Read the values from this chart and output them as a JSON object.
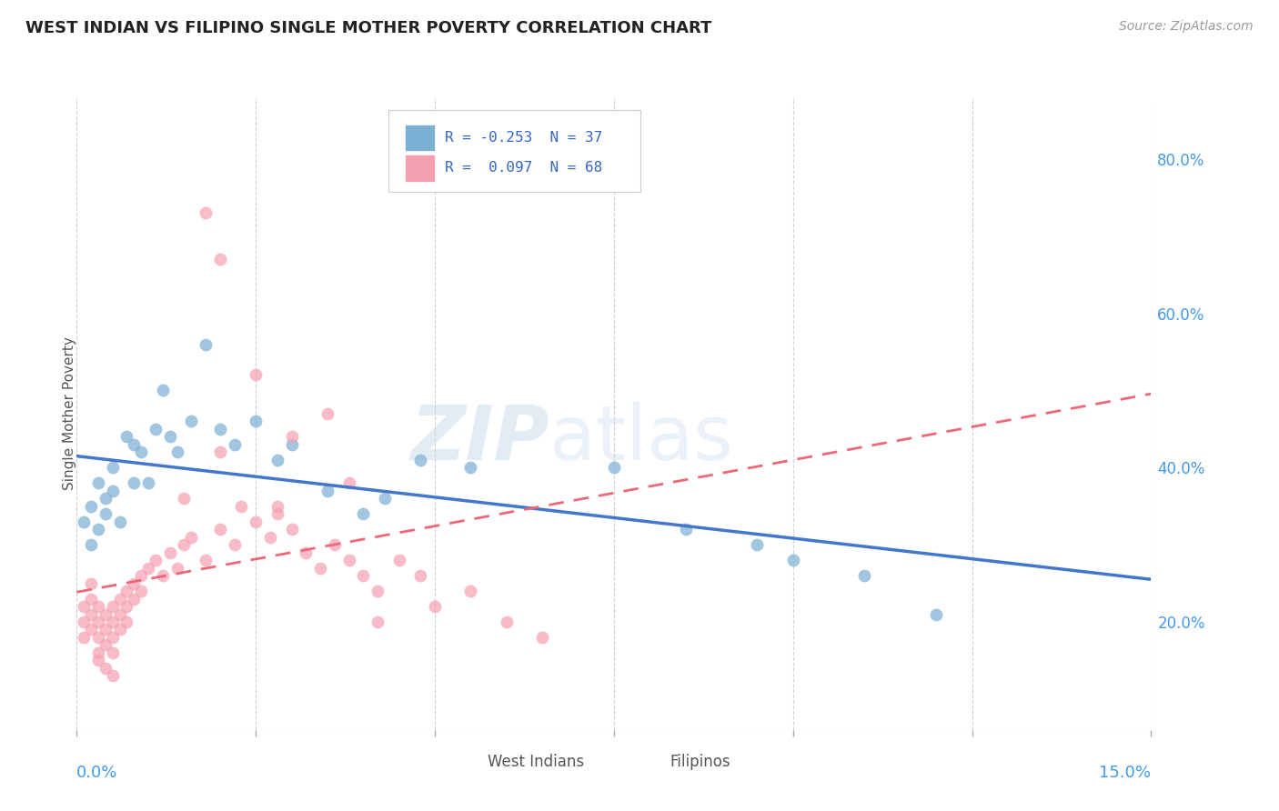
{
  "title": "WEST INDIAN VS FILIPINO SINGLE MOTHER POVERTY CORRELATION CHART",
  "source": "Source: ZipAtlas.com",
  "ylabel": "Single Mother Poverty",
  "y_ticks": [
    0.2,
    0.4,
    0.6,
    0.8
  ],
  "y_tick_labels": [
    "20.0%",
    "40.0%",
    "60.0%",
    "80.0%"
  ],
  "xlim": [
    0.0,
    0.15
  ],
  "ylim": [
    0.06,
    0.88
  ],
  "legend_blue_r": "-0.253",
  "legend_blue_n": "37",
  "legend_pink_r": "0.097",
  "legend_pink_n": "68",
  "blue_color": "#7BAFD4",
  "pink_color": "#F4A0B0",
  "line_blue_color": "#4477CC",
  "line_pink_color": "#EE6677",
  "west_indian_x": [
    0.001,
    0.002,
    0.002,
    0.003,
    0.003,
    0.004,
    0.004,
    0.005,
    0.005,
    0.006,
    0.007,
    0.008,
    0.008,
    0.009,
    0.01,
    0.011,
    0.012,
    0.013,
    0.014,
    0.016,
    0.018,
    0.02,
    0.022,
    0.025,
    0.028,
    0.03,
    0.035,
    0.04,
    0.043,
    0.048,
    0.055,
    0.075,
    0.085,
    0.095,
    0.1,
    0.11,
    0.12
  ],
  "west_indian_y": [
    0.33,
    0.35,
    0.3,
    0.32,
    0.38,
    0.34,
    0.36,
    0.4,
    0.37,
    0.33,
    0.44,
    0.38,
    0.43,
    0.42,
    0.38,
    0.45,
    0.5,
    0.44,
    0.42,
    0.46,
    0.56,
    0.45,
    0.43,
    0.46,
    0.41,
    0.43,
    0.37,
    0.34,
    0.36,
    0.41,
    0.4,
    0.4,
    0.32,
    0.3,
    0.28,
    0.26,
    0.21
  ],
  "filipino_x": [
    0.001,
    0.001,
    0.001,
    0.002,
    0.002,
    0.002,
    0.002,
    0.003,
    0.003,
    0.003,
    0.003,
    0.003,
    0.004,
    0.004,
    0.004,
    0.004,
    0.005,
    0.005,
    0.005,
    0.005,
    0.005,
    0.006,
    0.006,
    0.006,
    0.007,
    0.007,
    0.007,
    0.008,
    0.008,
    0.009,
    0.009,
    0.01,
    0.011,
    0.012,
    0.013,
    0.014,
    0.015,
    0.016,
    0.018,
    0.02,
    0.022,
    0.023,
    0.025,
    0.027,
    0.028,
    0.03,
    0.032,
    0.034,
    0.036,
    0.038,
    0.04,
    0.042,
    0.045,
    0.048,
    0.05,
    0.055,
    0.06,
    0.065,
    0.035,
    0.028,
    0.018,
    0.02,
    0.025,
    0.03,
    0.038,
    0.042,
    0.02,
    0.015
  ],
  "filipino_y": [
    0.2,
    0.22,
    0.18,
    0.21,
    0.19,
    0.23,
    0.25,
    0.2,
    0.22,
    0.18,
    0.16,
    0.15,
    0.21,
    0.19,
    0.17,
    0.14,
    0.22,
    0.2,
    0.18,
    0.16,
    0.13,
    0.23,
    0.21,
    0.19,
    0.24,
    0.22,
    0.2,
    0.25,
    0.23,
    0.26,
    0.24,
    0.27,
    0.28,
    0.26,
    0.29,
    0.27,
    0.3,
    0.31,
    0.28,
    0.32,
    0.3,
    0.35,
    0.33,
    0.31,
    0.34,
    0.32,
    0.29,
    0.27,
    0.3,
    0.28,
    0.26,
    0.24,
    0.28,
    0.26,
    0.22,
    0.24,
    0.2,
    0.18,
    0.47,
    0.35,
    0.73,
    0.67,
    0.52,
    0.44,
    0.38,
    0.2,
    0.42,
    0.36
  ]
}
